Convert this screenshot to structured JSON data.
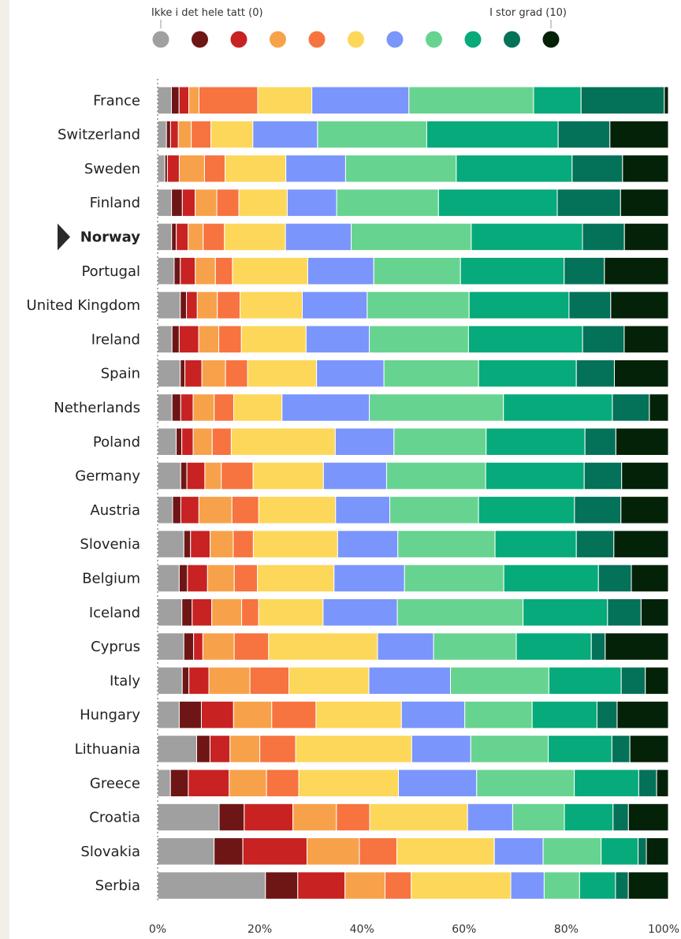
{
  "chart_data": {
    "type": "bar",
    "orientation": "horizontal",
    "stacked": true,
    "legend": {
      "low_label": "Ikke i det hele tatt (0)",
      "high_label": "I stor grad (10)",
      "scale": [
        "0",
        "1",
        "2",
        "3",
        "4",
        "5",
        "6",
        "7",
        "8",
        "9",
        "10"
      ],
      "colors": [
        "#a0a0a0",
        "#6e1616",
        "#c82222",
        "#f7a24a",
        "#f77340",
        "#fdd759",
        "#7a95fb",
        "#67d390",
        "#07aa7a",
        "#037258",
        "#032208"
      ]
    },
    "highlight": "Norway",
    "xlim": [
      0,
      100
    ],
    "xticks": [
      "0%",
      "20%",
      "40%",
      "60%",
      "80%",
      "100%"
    ],
    "grid": false,
    "categories": [
      "France",
      "Switzerland",
      "Sweden",
      "Finland",
      "Norway",
      "Portugal",
      "United Kingdom",
      "Ireland",
      "Spain",
      "Netherlands",
      "Poland",
      "Germany",
      "Austria",
      "Slovenia",
      "Belgium",
      "Iceland",
      "Cyprus",
      "Italy",
      "Hungary",
      "Lithuania",
      "Greece",
      "Croatia",
      "Slovakia",
      "Serbia"
    ],
    "values": [
      [
        2.7,
        1.5,
        1.9,
        2.0,
        11.5,
        10.6,
        19.0,
        24.4,
        9.3,
        16.3,
        0.8
      ],
      [
        1.7,
        0.8,
        1.5,
        2.5,
        3.8,
        8.1,
        12.5,
        21.1,
        25.4,
        10.0,
        11.3
      ],
      [
        1.4,
        0.5,
        2.3,
        4.9,
        4.0,
        11.8,
        11.6,
        21.5,
        22.5,
        9.8,
        8.9
      ],
      [
        2.7,
        2.1,
        2.5,
        4.2,
        4.3,
        9.4,
        9.6,
        19.8,
        23.1,
        12.3,
        9.3
      ],
      [
        2.7,
        0.9,
        2.3,
        2.9,
        4.1,
        11.8,
        12.7,
        23.2,
        21.5,
        8.1,
        8.5
      ],
      [
        3.2,
        1.2,
        2.9,
        3.9,
        3.3,
        14.6,
        12.8,
        16.8,
        20.1,
        7.8,
        12.4
      ],
      [
        4.4,
        1.2,
        2.1,
        3.9,
        4.4,
        12.1,
        12.6,
        19.8,
        19.4,
        8.1,
        11.2
      ],
      [
        2.8,
        1.4,
        3.8,
        3.9,
        4.4,
        12.6,
        12.3,
        19.3,
        22.2,
        8.1,
        8.6
      ],
      [
        4.4,
        0.9,
        3.3,
        4.6,
        4.3,
        13.4,
        13.1,
        18.4,
        19.0,
        7.4,
        10.5
      ],
      [
        2.8,
        1.7,
        2.4,
        4.1,
        3.8,
        9.4,
        17.0,
        26.1,
        21.2,
        7.2,
        3.7
      ],
      [
        3.6,
        1.1,
        2.2,
        3.7,
        3.7,
        20.2,
        11.4,
        17.9,
        19.2,
        6.0,
        10.2
      ],
      [
        4.5,
        1.2,
        3.5,
        3.2,
        6.2,
        13.7,
        12.3,
        19.3,
        19.2,
        7.3,
        9.1
      ],
      [
        2.9,
        1.6,
        3.5,
        6.4,
        5.2,
        14.9,
        10.5,
        17.2,
        18.6,
        9.0,
        9.2
      ],
      [
        5.1,
        1.3,
        3.8,
        4.5,
        3.9,
        16.4,
        11.7,
        18.9,
        15.8,
        7.3,
        10.6
      ],
      [
        4.2,
        1.6,
        3.9,
        5.2,
        4.5,
        14.9,
        13.7,
        19.3,
        18.4,
        6.4,
        7.2
      ],
      [
        4.7,
        2.0,
        3.8,
        5.8,
        3.3,
        12.5,
        14.4,
        24.4,
        16.4,
        6.5,
        5.3
      ],
      [
        5.1,
        1.9,
        1.8,
        6.1,
        6.7,
        21.2,
        10.9,
        16.1,
        14.6,
        2.7,
        12.3
      ],
      [
        4.8,
        1.3,
        3.9,
        8.0,
        7.6,
        15.6,
        15.9,
        19.2,
        14.1,
        4.7,
        4.5
      ],
      [
        4.3,
        4.4,
        6.4,
        7.6,
        8.8,
        17.0,
        12.6,
        13.4,
        12.9,
        4.0,
        10.2
      ],
      [
        7.6,
        2.6,
        3.9,
        5.8,
        7.0,
        22.6,
        11.5,
        15.1,
        12.4,
        3.5,
        7.5
      ],
      [
        2.5,
        3.5,
        8.0,
        7.3,
        6.3,
        19.5,
        15.3,
        19.1,
        12.6,
        3.5,
        2.3
      ],
      [
        12.0,
        4.9,
        9.5,
        8.5,
        6.5,
        19.1,
        8.8,
        10.1,
        9.5,
        3.0,
        7.8
      ],
      [
        11.0,
        5.6,
        12.5,
        10.2,
        7.3,
        19.0,
        9.5,
        11.3,
        7.2,
        1.6,
        4.3
      ],
      [
        21.0,
        6.3,
        9.2,
        7.8,
        5.1,
        19.4,
        6.5,
        6.9,
        7.0,
        2.5,
        7.8
      ]
    ]
  }
}
